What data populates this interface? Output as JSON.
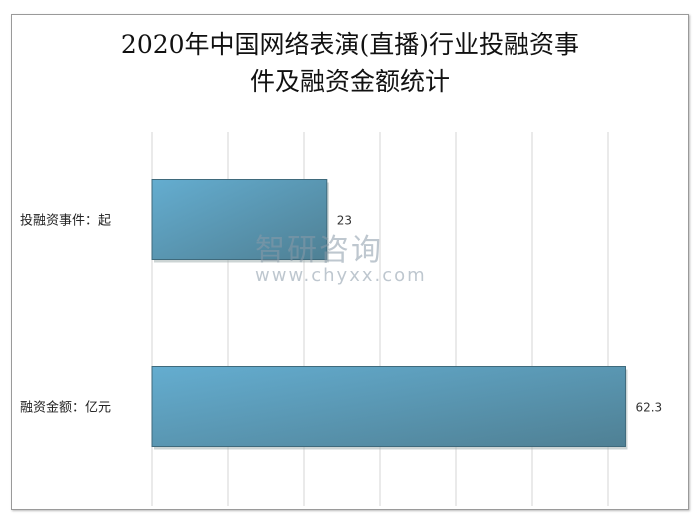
{
  "chart_data": {
    "type": "bar",
    "orientation": "horizontal",
    "title_lines": [
      "2020年中国网络表演(直播)行业投融资事",
      "件及融资金额统计"
    ],
    "categories": [
      "投融资事件：起",
      "融资金额：亿元"
    ],
    "values": [
      23,
      62.3
    ],
    "value_labels": [
      "23",
      "62.3"
    ],
    "xlim": [
      0,
      70
    ],
    "grid": true,
    "gridline_step": 10,
    "legend": "none",
    "bar_color": "#5ea7c9",
    "bar_color_dark": "#4e8096"
  },
  "watermark": {
    "logo": "智研咨询",
    "url": "www.chyxx.com"
  }
}
